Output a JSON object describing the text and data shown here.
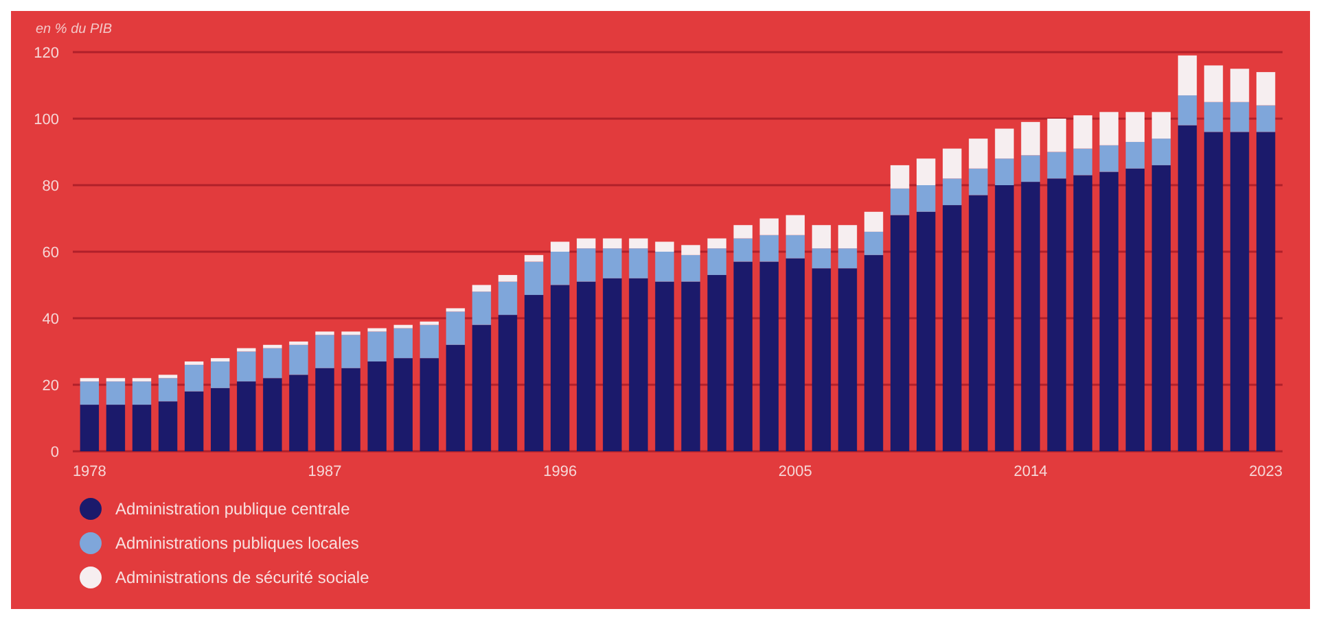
{
  "chart_data": {
    "type": "bar",
    "stacked": true,
    "ylabel": "en % du PIB",
    "ylim": [
      0,
      120
    ],
    "yticks": [
      0,
      20,
      40,
      60,
      80,
      100,
      120
    ],
    "grid": "y",
    "legend": "bottom left",
    "categories": [
      "1978",
      null,
      null,
      null,
      null,
      null,
      null,
      null,
      null,
      "1987",
      null,
      null,
      null,
      null,
      null,
      null,
      null,
      null,
      "1996",
      null,
      null,
      null,
      null,
      null,
      null,
      null,
      null,
      "2005",
      null,
      null,
      null,
      null,
      null,
      null,
      null,
      null,
      "2014",
      null,
      null,
      null,
      null,
      null,
      null,
      null,
      null,
      "2023"
    ],
    "series": [
      {
        "name": "Administration publique centrale",
        "color": "#1b1a6b",
        "values": [
          14,
          14,
          14,
          15,
          18,
          19,
          21,
          22,
          23,
          25,
          25,
          27,
          28,
          28,
          32,
          38,
          41,
          47,
          50,
          51,
          52,
          52,
          51,
          51,
          53,
          57,
          57,
          58,
          55,
          55,
          59,
          71,
          72,
          74,
          77,
          80,
          81,
          82,
          83,
          84,
          85,
          86,
          98,
          96,
          96,
          96
        ]
      },
      {
        "name": "Administrations publiques locales",
        "color": "#7fa6da",
        "values": [
          7,
          7,
          7,
          7,
          8,
          8,
          9,
          9,
          9,
          10,
          10,
          9,
          9,
          10,
          10,
          10,
          10,
          10,
          10,
          10,
          9,
          9,
          9,
          8,
          8,
          7,
          8,
          7,
          6,
          6,
          7,
          8,
          8,
          8,
          8,
          8,
          8,
          8,
          8,
          8,
          8,
          8,
          9,
          9,
          9,
          8
        ]
      },
      {
        "name": "Administrations de sécurité sociale",
        "color": "#f6eef0",
        "values": [
          1,
          1,
          1,
          1,
          1,
          1,
          1,
          1,
          1,
          1,
          1,
          1,
          1,
          1,
          1,
          2,
          2,
          2,
          3,
          3,
          3,
          3,
          3,
          3,
          3,
          4,
          5,
          6,
          7,
          7,
          6,
          7,
          8,
          9,
          9,
          9,
          10,
          10,
          10,
          10,
          9,
          8,
          12,
          11,
          10,
          10
        ]
      }
    ]
  }
}
